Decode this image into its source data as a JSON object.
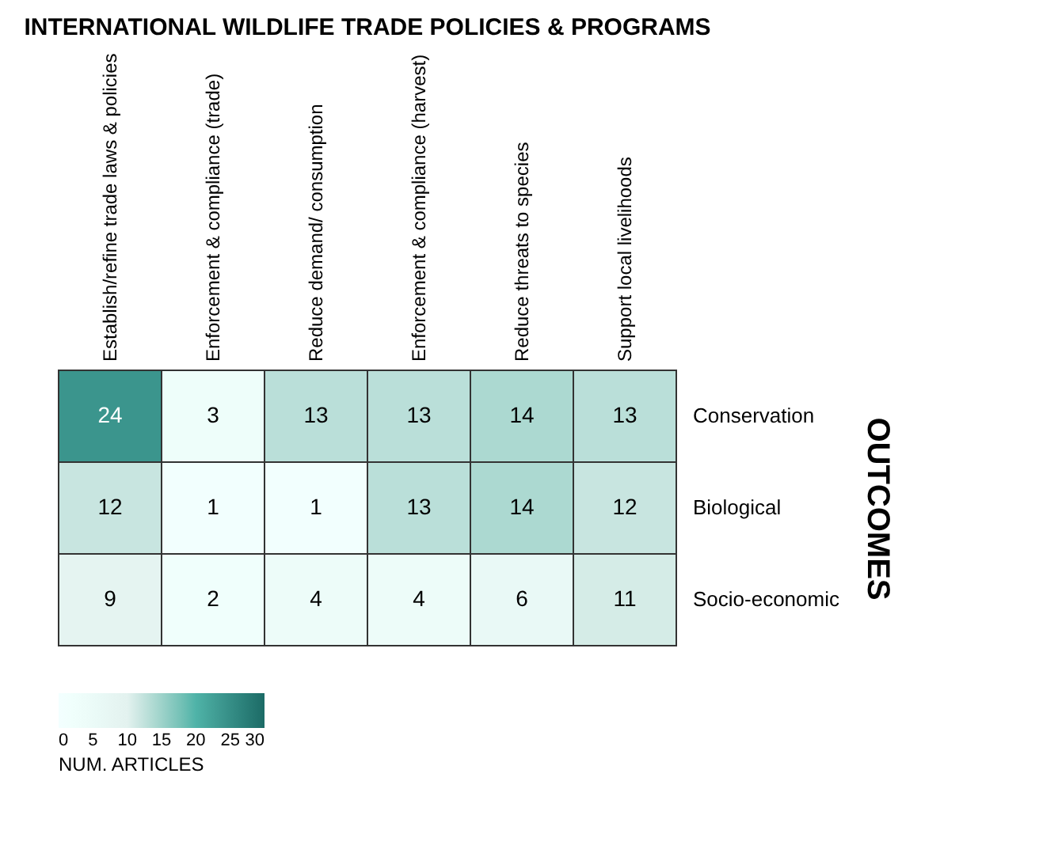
{
  "chart_data": {
    "type": "heatmap",
    "title": "INTERNATIONAL WILDLIFE TRADE POLICIES & PROGRAMS",
    "ylabel": "OUTCOMES",
    "clabel": "NUM. ARTICLES",
    "categories": [
      "Establish/refine trade laws & policies",
      "Enforcement & compliance (trade)",
      "Reduce demand/ consumption",
      "Enforcement & compliance (harvest)",
      "Reduce threats to species",
      "Support local livelihoods"
    ],
    "y_categories": [
      "Conservation",
      "Biological",
      "Socio-economic"
    ],
    "cells": [
      [
        24,
        3,
        13,
        13,
        14,
        13
      ],
      [
        12,
        1,
        1,
        13,
        14,
        12
      ],
      [
        9,
        2,
        4,
        4,
        6,
        11
      ]
    ],
    "clim": [
      0,
      30
    ],
    "cticks": [
      0,
      5,
      10,
      15,
      20,
      25,
      30
    ],
    "data_labels": true
  }
}
